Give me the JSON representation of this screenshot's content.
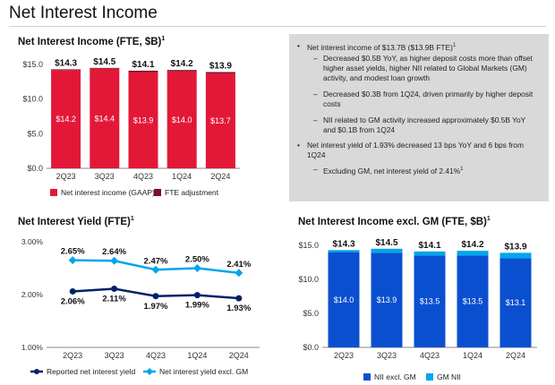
{
  "page_title": "Net Interest Income",
  "colors": {
    "red": "#e31837",
    "dark_red": "#7b0f24",
    "dark_blue": "#012169",
    "light_blue": "#00a6ea",
    "bar_blue": "#0b4fd1",
    "panel": "#d9d9d9"
  },
  "summary": {
    "bullets": [
      {
        "text": "Net interest income of $13.7B ($13.9B FTE)",
        "sup": "1",
        "sub": [
          {
            "text": "Decreased $0.5B YoY, as higher deposit costs more than offset higher asset yields, higher NII related to Global Markets (GM) activity, and modest loan growth",
            "sup": ""
          },
          {
            "text": "Decreased $0.3B from 1Q24, driven primarily by higher deposit costs",
            "sup": ""
          },
          {
            "text": "NII related to GM activity increased approximately $0.5B YoY and $0.1B from 1Q24",
            "sup": ""
          }
        ]
      },
      {
        "text": "Net interest yield of 1.93% decreased 13 bps YoY and 6 bps from 1Q24",
        "sup": "",
        "sub": [
          {
            "text": "Excluding GM, net interest yield of 2.41%",
            "sup": "1"
          }
        ]
      }
    ]
  },
  "chart_data": [
    {
      "type": "bar",
      "title": "Net Interest Income (FTE, $B)",
      "title_sup": "1",
      "categories": [
        "2Q23",
        "3Q23",
        "4Q23",
        "1Q24",
        "2Q24"
      ],
      "series": [
        {
          "name": "Net interest income (GAAP)",
          "values": [
            14.2,
            14.4,
            13.9,
            14.0,
            13.7
          ],
          "labels": [
            "$14.2",
            "$14.4",
            "$13.9",
            "$14.0",
            "$13.7"
          ]
        },
        {
          "name": "FTE adjustment",
          "values": [
            0.1,
            0.1,
            0.2,
            0.2,
            0.2
          ]
        }
      ],
      "totals": [
        "$14.3",
        "$14.5",
        "$14.1",
        "$14.2",
        "$13.9"
      ],
      "total_values": [
        14.3,
        14.5,
        14.1,
        14.2,
        13.9
      ],
      "y_ticks": [
        0,
        5,
        10,
        15
      ],
      "y_tick_labels": [
        "$0.0",
        "$5.0",
        "$10.0",
        "$15.0"
      ],
      "ylim": [
        0,
        15
      ],
      "stacked": true,
      "legend_position": "bottom"
    },
    {
      "type": "line",
      "title": "Net Interest Yield (FTE)",
      "title_sup": "1",
      "categories": [
        "2Q23",
        "3Q23",
        "4Q23",
        "1Q24",
        "2Q24"
      ],
      "series": [
        {
          "name": "Reported net interest yield",
          "values": [
            2.06,
            2.11,
            1.97,
            1.99,
            1.93
          ],
          "labels": [
            "2.06%",
            "2.11%",
            "1.97%",
            "1.99%",
            "1.93%"
          ]
        },
        {
          "name": "Net interest yield excl. GM",
          "values": [
            2.65,
            2.64,
            2.47,
            2.5,
            2.41
          ],
          "labels": [
            "2.65%",
            "2.64%",
            "2.47%",
            "2.50%",
            "2.41%"
          ]
        }
      ],
      "y_ticks": [
        1.0,
        2.0,
        3.0
      ],
      "y_tick_labels": [
        "1.00%",
        "2.00%",
        "3.00%"
      ],
      "ylim": [
        1.0,
        3.0
      ],
      "legend_position": "bottom"
    },
    {
      "type": "bar",
      "title": "Net Interest Income excl. GM (FTE, $B)",
      "title_sup": "1",
      "categories": [
        "2Q23",
        "3Q23",
        "4Q23",
        "1Q24",
        "2Q24"
      ],
      "series": [
        {
          "name": "NII excl. GM",
          "values": [
            14.0,
            13.9,
            13.5,
            13.5,
            13.1
          ],
          "labels": [
            "$14.0",
            "$13.9",
            "$13.5",
            "$13.5",
            "$13.1"
          ]
        },
        {
          "name": "GM NII",
          "values": [
            0.3,
            0.6,
            0.6,
            0.7,
            0.8
          ]
        }
      ],
      "totals": [
        "$14.3",
        "$14.5",
        "$14.1",
        "$14.2",
        "$13.9"
      ],
      "total_values": [
        14.3,
        14.5,
        14.1,
        14.2,
        13.9
      ],
      "y_ticks": [
        0,
        5,
        10,
        15
      ],
      "y_tick_labels": [
        "$0.0",
        "$5.0",
        "$10.0",
        "$15.0"
      ],
      "ylim": [
        0,
        15
      ],
      "stacked": true,
      "legend_position": "bottom"
    }
  ]
}
